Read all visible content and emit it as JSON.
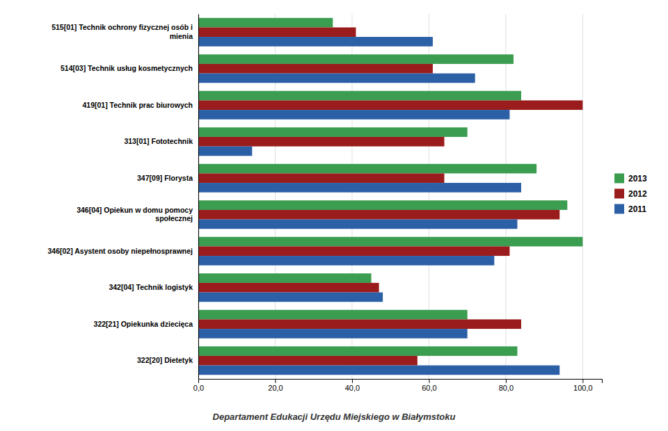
{
  "chart_data": {
    "type": "bar",
    "orientation": "horizontal",
    "categories": [
      "322[20] Dietetyk",
      "322[21] Opiekunka dziecięca",
      "342[04] Technik logistyk",
      "346[02] Asystent osoby niepełnosprawnej",
      "346[04] Opiekun w domu pomocy\nspołecznej",
      "347[09] Florysta",
      "313[01] Fototechnik",
      "419[01] Technik prac biurowych",
      "514[03] Technik usług kosmetycznych",
      "515[01] Technik ochrony fizycznej osób i\nmienia"
    ],
    "series": [
      {
        "name": "2013",
        "color": "#3a9d4f",
        "values": [
          83,
          70,
          45,
          100,
          96,
          88,
          70,
          84,
          82,
          35
        ]
      },
      {
        "name": "2012",
        "color": "#9b1c1c",
        "values": [
          57,
          84,
          47,
          81,
          94,
          64,
          64,
          100,
          61,
          41
        ]
      },
      {
        "name": "2011",
        "color": "#2b5fa6",
        "values": [
          94,
          70,
          48,
          77,
          83,
          84,
          14,
          81,
          72,
          61
        ]
      }
    ],
    "xlim": [
      0,
      105
    ],
    "xticks": [
      {
        "value": 0,
        "label": "0,0"
      },
      {
        "value": 20,
        "label": "20,0"
      },
      {
        "value": 40,
        "label": "40,0"
      },
      {
        "value": 60,
        "label": "60,0"
      },
      {
        "value": 80,
        "label": "80,0"
      },
      {
        "value": 100,
        "label": "100,0"
      }
    ],
    "grid": true,
    "legend": "right",
    "annotations": [
      "Departament Edukacji Urzędu Miejskiego w Białymstoku"
    ]
  }
}
